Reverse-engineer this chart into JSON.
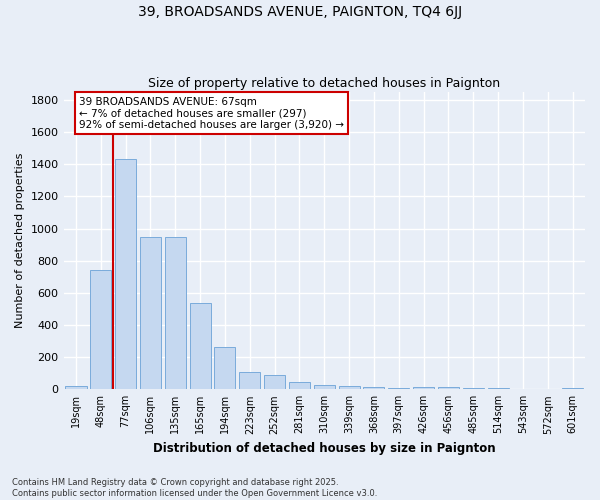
{
  "title_line1": "39, BROADSANDS AVENUE, PAIGNTON, TQ4 6JJ",
  "title_line2": "Size of property relative to detached houses in Paignton",
  "xlabel": "Distribution of detached houses by size in Paignton",
  "ylabel": "Number of detached properties",
  "categories": [
    "19sqm",
    "48sqm",
    "77sqm",
    "106sqm",
    "135sqm",
    "165sqm",
    "194sqm",
    "223sqm",
    "252sqm",
    "281sqm",
    "310sqm",
    "339sqm",
    "368sqm",
    "397sqm",
    "426sqm",
    "456sqm",
    "485sqm",
    "514sqm",
    "543sqm",
    "572sqm",
    "601sqm"
  ],
  "values": [
    20,
    745,
    1435,
    950,
    950,
    535,
    265,
    108,
    92,
    45,
    27,
    20,
    12,
    8,
    15,
    12,
    8,
    6,
    5,
    4,
    8
  ],
  "bar_color": "#c5d8f0",
  "bar_edge_color": "#7aabdb",
  "background_color": "#e8eef7",
  "grid_color": "#ffffff",
  "annotation_box_color": "#ffffff",
  "annotation_box_edge": "#cc0000",
  "vline_color": "#cc0000",
  "vline_x": 2.0,
  "annotation_text_line1": "39 BROADSANDS AVENUE: 67sqm",
  "annotation_text_line2": "← 7% of detached houses are smaller (297)",
  "annotation_text_line3": "92% of semi-detached houses are larger (3,920) →",
  "footer_line1": "Contains HM Land Registry data © Crown copyright and database right 2025.",
  "footer_line2": "Contains public sector information licensed under the Open Government Licence v3.0.",
  "ylim": [
    0,
    1850
  ],
  "yticks": [
    0,
    200,
    400,
    600,
    800,
    1000,
    1200,
    1400,
    1600,
    1800
  ]
}
